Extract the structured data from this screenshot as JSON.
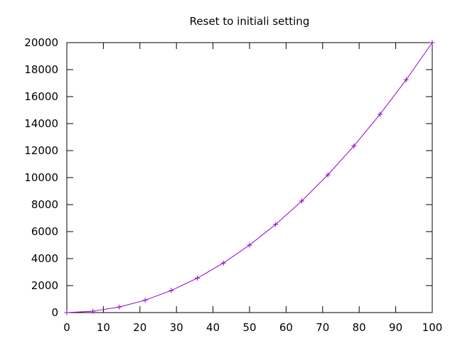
{
  "chart_data": {
    "type": "line",
    "title": "Reset to initiali setting",
    "xlabel": "",
    "ylabel": "",
    "xlim": [
      0,
      100
    ],
    "ylim": [
      0,
      20000
    ],
    "x_ticks": [
      0,
      10,
      20,
      30,
      40,
      50,
      60,
      70,
      80,
      90,
      100
    ],
    "y_ticks": [
      0,
      2000,
      4000,
      6000,
      8000,
      10000,
      12000,
      14000,
      16000,
      18000,
      20000
    ],
    "grid": false,
    "legend": "none",
    "line_color": "#9400d3",
    "series": [
      {
        "marker": "plus",
        "x": [
          0,
          7.14,
          14.29,
          21.43,
          28.57,
          35.71,
          42.86,
          50,
          57.14,
          64.29,
          71.43,
          78.57,
          85.71,
          92.86,
          100
        ],
        "values": [
          0,
          102,
          408,
          918,
          1633,
          2551,
          3673,
          5000,
          6531,
          8265,
          10204,
          12347,
          14694,
          17245,
          20000
        ]
      }
    ]
  }
}
